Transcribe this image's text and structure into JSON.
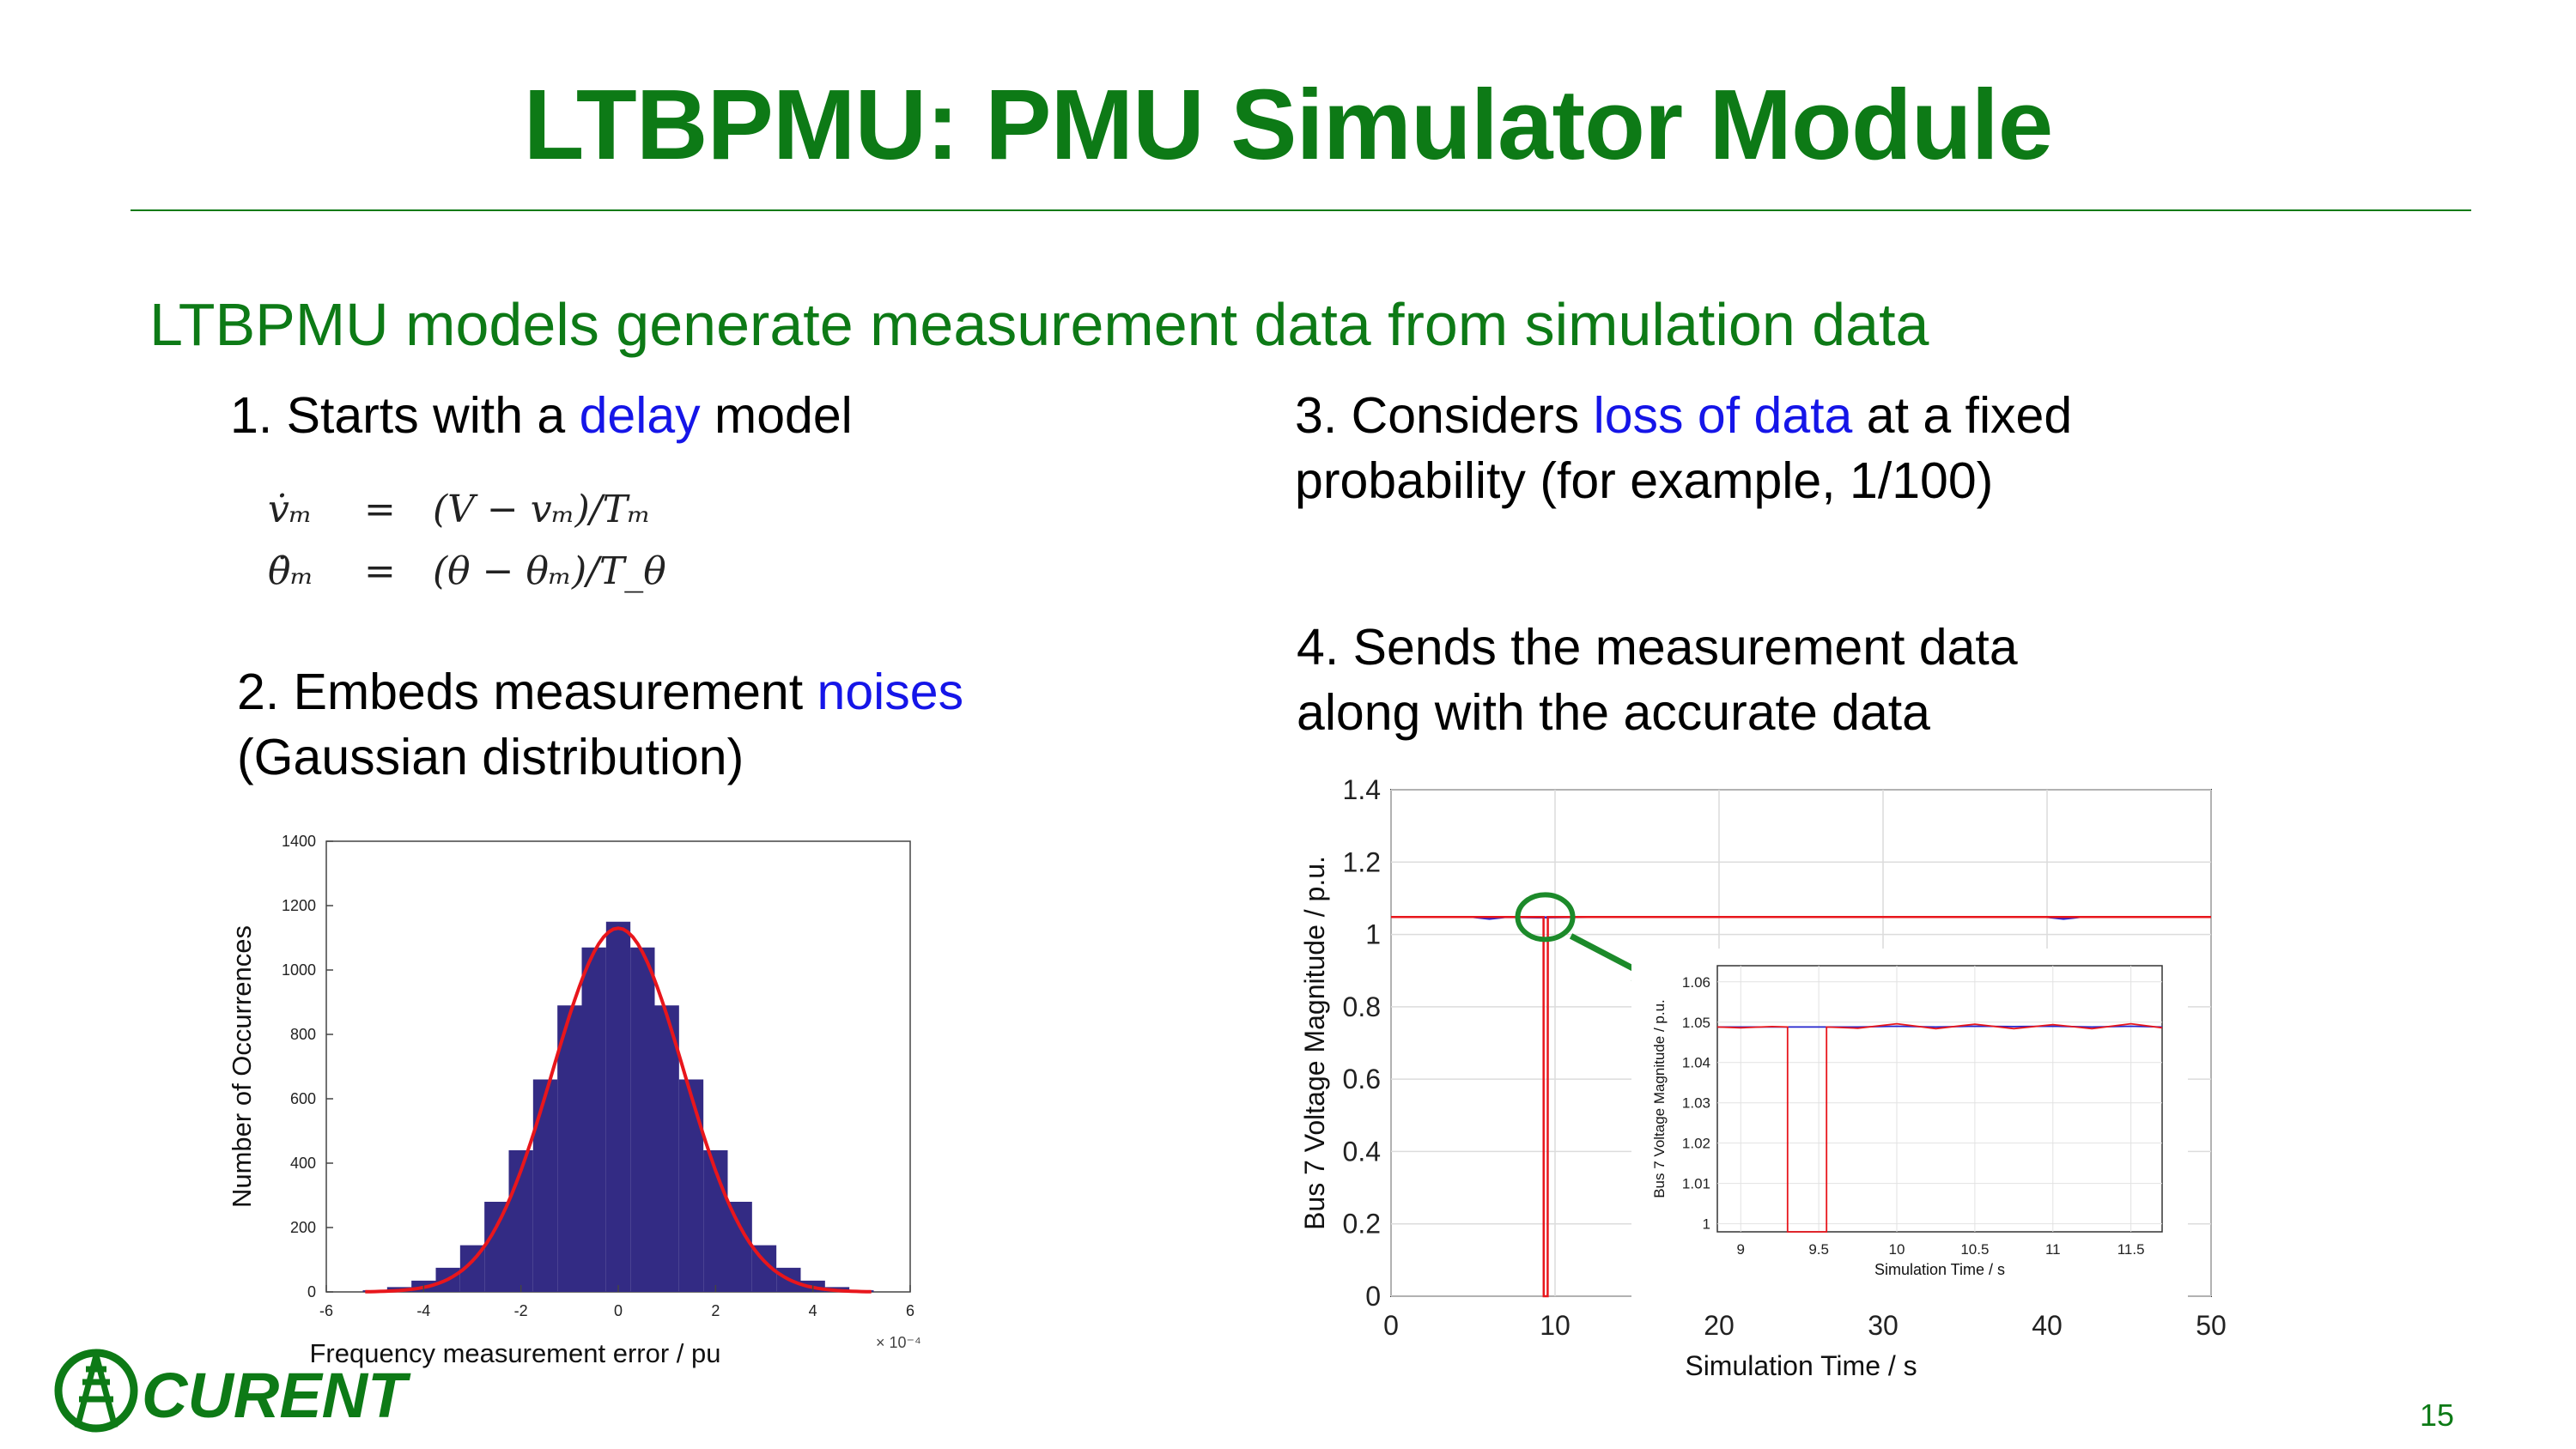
{
  "slide": {
    "title": "LTBPMU: PMU Simulator Module",
    "subtitle": "LTBPMU models generate measurement data from simulation data",
    "page_number": "15",
    "logo_text": "CURENT"
  },
  "items": {
    "i1": {
      "pre": "1. Starts with a ",
      "hl": "delay",
      "post": " model"
    },
    "i2": {
      "line1_pre": "2. Embeds measurement ",
      "line1_hl": "noises",
      "line2": "(Gaussian distribution)"
    },
    "i3": {
      "line1_pre": "3. Considers ",
      "line1_hl": "loss of data",
      "line1_post": " at a fixed",
      "line2": "probability (for example, 1/100)"
    },
    "i4": {
      "line1": "4. Sends the measurement data",
      "line2": "along with the accurate data"
    }
  },
  "equations": {
    "eq1": {
      "lhs": "v̇ₘ",
      "op": "=",
      "rhs": "(V − vₘ)/Tₘ"
    },
    "eq2": {
      "lhs": "θ̇ₘ",
      "op": "=",
      "rhs": "(θ − θₘ)/T_θ"
    }
  },
  "colors": {
    "brand_green": "#0d7a16",
    "highlight_blue": "#1515e8",
    "histogram_fill": "#332b84",
    "fit_red": "#e8161c",
    "trace_blue": "#2424cc",
    "trace_red": "#e8161c"
  },
  "chart_data": [
    {
      "type": "bar",
      "subtype": "histogram",
      "xlabel": "Frequency measurement error / pu",
      "ylabel": "Number of Occurrences",
      "x_multiplier": "× 10⁻⁴",
      "xlim": [
        -6,
        6
      ],
      "ylim": [
        0,
        1400
      ],
      "xticks": [
        "-6",
        "-4",
        "-2",
        "0",
        "2",
        "4",
        "6"
      ],
      "yticks": [
        "0",
        "200",
        "400",
        "600",
        "800",
        "1000",
        "1200",
        "1400"
      ],
      "bins": [
        -5.0,
        -4.5,
        -4.0,
        -3.5,
        -3.0,
        -2.5,
        -2.0,
        -1.5,
        -1.0,
        -0.5,
        0.0,
        0.5,
        1.0,
        1.5,
        2.0,
        2.5,
        3.0,
        3.5,
        4.0,
        4.5,
        5.0
      ],
      "counts": [
        5,
        15,
        35,
        75,
        145,
        280,
        440,
        660,
        890,
        1070,
        1150,
        1070,
        890,
        660,
        440,
        280,
        145,
        75,
        35,
        15,
        5
      ],
      "fit": {
        "mean": 0.0,
        "peak": 1130,
        "sigma": 1.35
      }
    },
    {
      "type": "line",
      "xlabel": "Simulation Time / s",
      "ylabel": "Bus 7 Voltage Magnitude / p.u.",
      "xlim": [
        0,
        50
      ],
      "ylim": [
        0,
        1.4
      ],
      "xticks": [
        "0",
        "10",
        "20",
        "30",
        "40",
        "50"
      ],
      "yticks": [
        "0",
        "0.2",
        "0.4",
        "0.6",
        "0.8",
        "1",
        "1.2",
        "1.4"
      ],
      "series": [
        {
          "values_x": [
            0,
            5,
            6,
            7,
            9,
            12,
            20,
            30,
            40,
            41,
            42,
            50
          ],
          "values_y": [
            1.048,
            1.048,
            1.043,
            1.048,
            1.047,
            1.048,
            1.048,
            1.048,
            1.048,
            1.043,
            1.048,
            1.048
          ]
        },
        {
          "values_x": [
            0,
            9.3,
            9.31,
            9.55,
            9.56,
            50
          ],
          "values_y": [
            1.048,
            1.048,
            0,
            0,
            1.048,
            1.048
          ]
        }
      ],
      "inset": {
        "xlabel": "Simulation Time / s",
        "ylabel": "Bus 7 Voltage Magnitude / p.u.",
        "xlim": [
          8.85,
          11.7
        ],
        "ylim": [
          0.998,
          1.064
        ],
        "xticks": [
          "9",
          "9.5",
          "10",
          "10.5",
          "11",
          "11.5"
        ],
        "yticks": [
          "1",
          "1.01",
          "1.02",
          "1.03",
          "1.04",
          "1.05",
          "1.06"
        ],
        "series": [
          {
            "values_x": [
              8.85,
              9.5,
              9.75,
              10.0,
              10.25,
              10.5,
              10.75,
              11.0,
              11.25,
              11.5,
              11.7
            ],
            "values_y": [
              1.0488,
              1.0488,
              1.0488,
              1.049,
              1.0488,
              1.049,
              1.0489,
              1.049,
              1.0488,
              1.049,
              1.0488
            ]
          },
          {
            "values_x": [
              8.85,
              9.0,
              9.2,
              9.3,
              9.3,
              9.55,
              9.55,
              9.75,
              10.0,
              10.25,
              10.5,
              10.75,
              11.0,
              11.25,
              11.5,
              11.7
            ],
            "values_y": [
              1.0488,
              1.0486,
              1.0489,
              1.0488,
              0.998,
              0.998,
              1.0488,
              1.0485,
              1.0496,
              1.0484,
              1.0495,
              1.0484,
              1.0494,
              1.0484,
              1.0496,
              1.0486
            ]
          }
        ]
      }
    }
  ]
}
